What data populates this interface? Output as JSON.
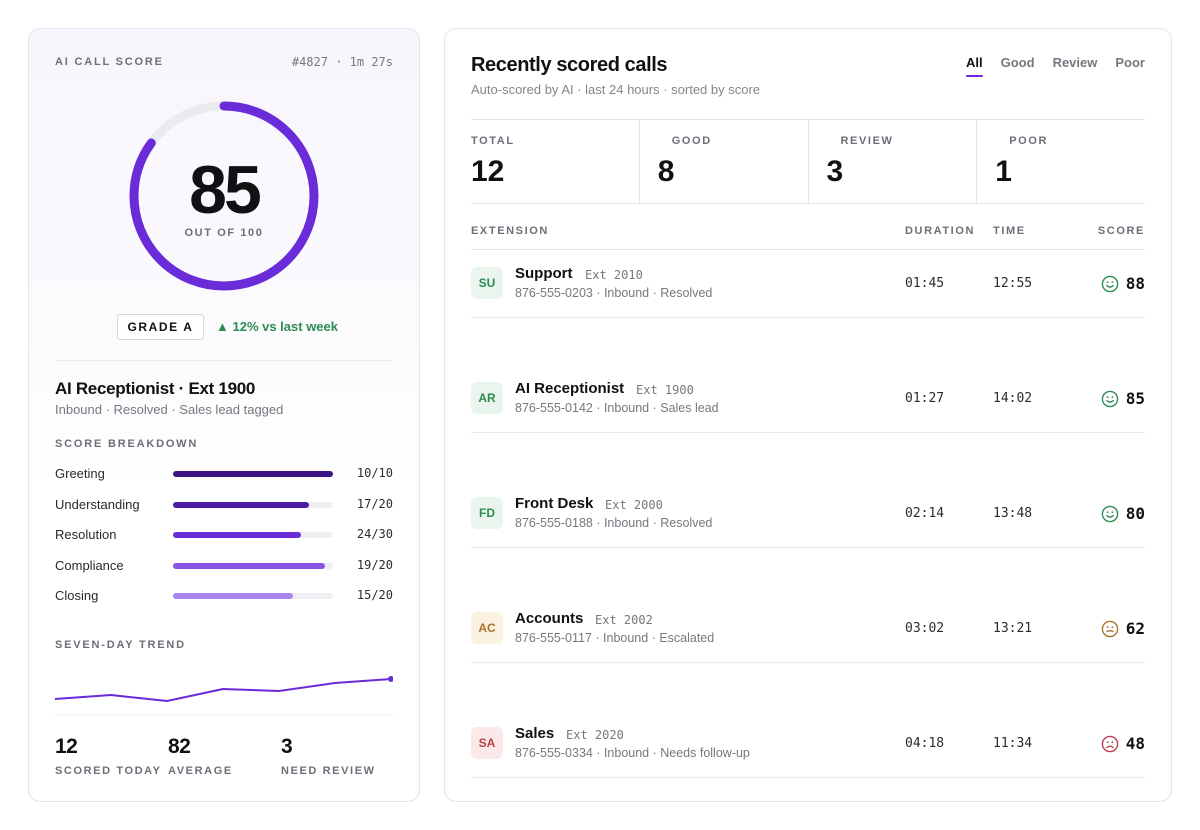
{
  "left": {
    "title": "AI CALL SCORE",
    "call_id": "#4827 · 1m 27s",
    "score": "85",
    "score_out_of": "OUT OF 100",
    "score_fraction": 0.85,
    "grade": "GRADE A",
    "trend": "▲ 12% vs last week",
    "call_title": "AI Receptionist · Ext 1900",
    "call_meta": "Inbound · Resolved · Sales lead tagged",
    "breakdown_label": "SCORE BREAKDOWN",
    "breakdown": [
      {
        "label": "Greeting",
        "value": "10/10",
        "fraction": 1.0,
        "color": "#3d1483"
      },
      {
        "label": "Understanding",
        "value": "17/20",
        "fraction": 0.85,
        "color": "#4f1ca6"
      },
      {
        "label": "Resolution",
        "value": "24/30",
        "fraction": 0.8,
        "color": "#6a2bd8"
      },
      {
        "label": "Compliance",
        "value": "19/20",
        "fraction": 0.95,
        "color": "#8a55e6"
      },
      {
        "label": "Closing",
        "value": "15/20",
        "fraction": 0.75,
        "color": "#a985ef"
      }
    ],
    "trend_label": "SEVEN-DAY TREND",
    "trend_values": [
      74,
      76,
      73,
      79,
      78,
      82,
      84
    ],
    "trend_color": "#6a2bd8",
    "stats": [
      {
        "value": "12",
        "label": "SCORED TODAY"
      },
      {
        "value": "82",
        "label": "AVERAGE"
      },
      {
        "value": "3",
        "label": "NEED REVIEW"
      }
    ]
  },
  "right": {
    "title": "Recently scored calls",
    "subtitle": "Auto-scored by AI · last 24 hours · sorted by score",
    "tabs": [
      "All",
      "Good",
      "Review",
      "Poor"
    ],
    "active_tab": "All",
    "summary": [
      {
        "label": "TOTAL",
        "value": "12"
      },
      {
        "label": "GOOD",
        "value": "8"
      },
      {
        "label": "REVIEW",
        "value": "3"
      },
      {
        "label": "POOR",
        "value": "1"
      }
    ],
    "columns": {
      "extension": "EXTENSION",
      "duration": "DURATION",
      "time": "TIME",
      "score": "SCORE"
    },
    "rows": [
      {
        "initials": "SU",
        "name": "Support",
        "ext": "Ext 2010",
        "meta": "876-555-0203 · Inbound · Resolved",
        "duration": "01:45",
        "time": "12:55",
        "score": "88",
        "mood": "happy",
        "tone": "good"
      },
      {
        "initials": "AR",
        "name": "AI Receptionist",
        "ext": "Ext 1900",
        "meta": "876-555-0142 · Inbound · Sales lead",
        "duration": "01:27",
        "time": "14:02",
        "score": "85",
        "mood": "happy",
        "tone": "good"
      },
      {
        "initials": "FD",
        "name": "Front Desk",
        "ext": "Ext 2000",
        "meta": "876-555-0188 · Inbound · Resolved",
        "duration": "02:14",
        "time": "13:48",
        "score": "80",
        "mood": "happy",
        "tone": "good"
      },
      {
        "initials": "AC",
        "name": "Accounts",
        "ext": "Ext 2002",
        "meta": "876-555-0117 · Inbound · Escalated",
        "duration": "03:02",
        "time": "13:21",
        "score": "62",
        "mood": "neutral",
        "tone": "review"
      },
      {
        "initials": "SA",
        "name": "Sales",
        "ext": "Ext 2020",
        "meta": "876-555-0334 · Inbound · Needs follow-up",
        "duration": "04:18",
        "time": "11:34",
        "score": "48",
        "mood": "sad",
        "tone": "poor"
      }
    ],
    "tone_colors": {
      "good": {
        "fg": "#2e8b52",
        "bg": "#eaf5ee"
      },
      "review": {
        "fg": "#a8742a",
        "bg": "#faf1e3"
      },
      "poor": {
        "fg": "#b8404a",
        "bg": "#fbe9ea"
      }
    }
  }
}
